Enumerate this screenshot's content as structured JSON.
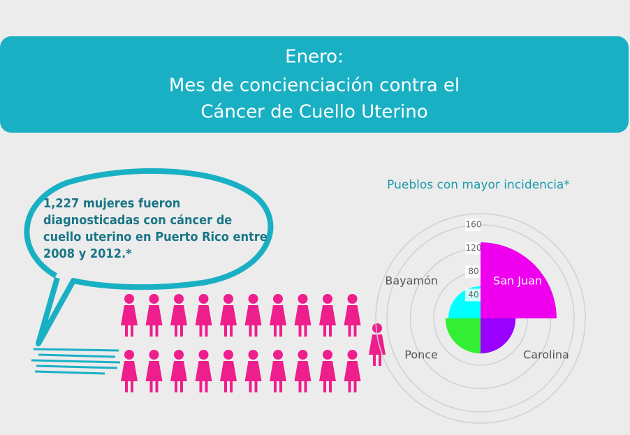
{
  "header": {
    "lines": [
      "Enero:",
      "Mes de concienciación contra el",
      "Cáncer de Cuello Uterino"
    ]
  },
  "callout": {
    "text": "1,227 mujeres fueron diagnosticadas con cáncer de cuello uterino en Puerto Rico entre 2008 y 2012.*"
  },
  "chart_data": {
    "type": "polar",
    "title": "Pueblos con mayor incidencia*",
    "categories": [
      "San Juan",
      "Carolina",
      "Ponce",
      "Bayamón"
    ],
    "values": [
      130,
      60,
      60,
      55
    ],
    "colors": [
      "#ee00ee",
      "#9900ff",
      "#33ee33",
      "#00ffff"
    ],
    "rlim": [
      0,
      160
    ],
    "rticks": [
      40,
      80,
      120,
      160
    ],
    "grid": true
  }
}
